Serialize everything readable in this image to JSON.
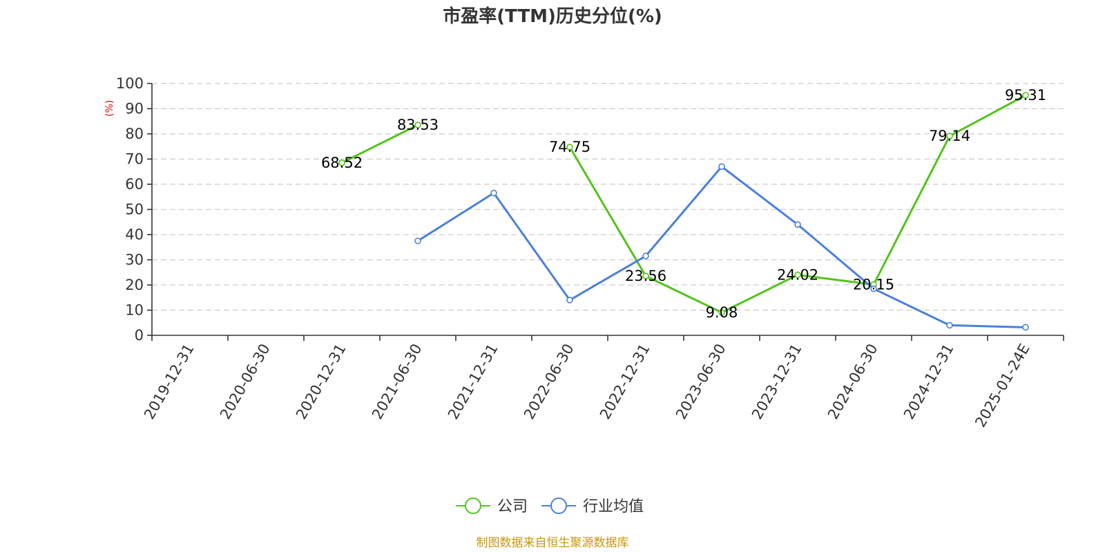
{
  "chart_data": {
    "type": "line",
    "title": "市盈率(TTM)历史分位(%)",
    "xlabel": "",
    "ylabel": "(%)",
    "ylim": [
      0,
      100
    ],
    "yticks": [
      0,
      10,
      20,
      30,
      40,
      50,
      60,
      70,
      80,
      90,
      100
    ],
    "grid": true,
    "legend_position": "bottom-center",
    "categories": [
      "2019-12-31",
      "2020-06-30",
      "2020-12-31",
      "2021-06-30",
      "2021-12-31",
      "2022-06-30",
      "2022-12-31",
      "2023-06-30",
      "2023-12-31",
      "2024-06-30",
      "2024-12-31",
      "2025-01-24E"
    ],
    "series": [
      {
        "name": "公司",
        "color": "#52c41a",
        "values": [
          null,
          null,
          68.52,
          83.53,
          null,
          74.75,
          23.56,
          9.08,
          24.02,
          20.15,
          79.14,
          95.31
        ],
        "labels": [
          "",
          "",
          "68.52",
          "83.53",
          "",
          "74.75",
          "23.56",
          "9.08",
          "24.02",
          "20.15",
          "79.14",
          "95.31"
        ],
        "show_labels": true
      },
      {
        "name": "行业均值",
        "color": "#4a7fdc",
        "values": [
          null,
          null,
          null,
          37.5,
          56.5,
          14.0,
          31.5,
          67.0,
          44.0,
          18.5,
          4.0,
          3.2
        ],
        "show_labels": false
      }
    ]
  },
  "source": "制图数据来自恒生聚源数据库"
}
